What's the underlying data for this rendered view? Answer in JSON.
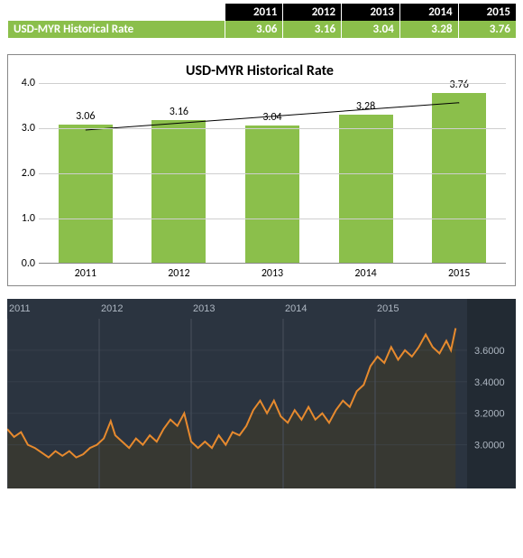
{
  "table": {
    "row_label": "USD-MYR Historical Rate",
    "row_color": "#8bbf4b",
    "years": [
      "2011",
      "2012",
      "2013",
      "2014",
      "2015"
    ],
    "values": [
      "3.06",
      "3.16",
      "3.04",
      "3.28",
      "3.76"
    ]
  },
  "bar_chart": {
    "type": "bar",
    "title": "USD-MYR Historical Rate",
    "title_fontsize": 16,
    "categories": [
      "2011",
      "2012",
      "2013",
      "2014",
      "2015"
    ],
    "values": [
      3.06,
      3.16,
      3.04,
      3.28,
      3.76
    ],
    "bar_color": "#8bbf4b",
    "background": "#ffffff",
    "grid_color": "#cfcfcf",
    "axis_color": "#888888",
    "label_fontsize": 12,
    "ylim": [
      0.0,
      4.0
    ],
    "ytick_step": 1.0,
    "bar_width": 0.58,
    "trendline": {
      "show": true,
      "color": "#000000",
      "width": 1
    }
  },
  "line_chart": {
    "type": "area",
    "background": "#2b3440",
    "axis_label_color": "#aeb7c2",
    "line_color": "#e78a2e",
    "line_width": 2,
    "area_color": "#3a3a30",
    "area_opacity": 0.85,
    "grid_color": "#48515d",
    "right_margin_color": "#222a33",
    "label_fontsize": 11,
    "x_labels": [
      "2011",
      "2012",
      "2013",
      "2014",
      "2015"
    ],
    "y_ticks": [
      "3.6000",
      "3.4000",
      "3.2000",
      "3.0000"
    ],
    "ylim": [
      2.78,
      3.8
    ],
    "x_range": [
      0,
      1000
    ],
    "series": [
      [
        0,
        3.1
      ],
      [
        15,
        3.05
      ],
      [
        30,
        3.08
      ],
      [
        45,
        3.0
      ],
      [
        60,
        2.98
      ],
      [
        75,
        2.95
      ],
      [
        90,
        2.92
      ],
      [
        105,
        2.96
      ],
      [
        120,
        2.93
      ],
      [
        135,
        2.96
      ],
      [
        150,
        2.92
      ],
      [
        165,
        2.94
      ],
      [
        180,
        2.98
      ],
      [
        195,
        3.0
      ],
      [
        210,
        3.04
      ],
      [
        225,
        3.15
      ],
      [
        235,
        3.06
      ],
      [
        250,
        3.02
      ],
      [
        265,
        2.98
      ],
      [
        280,
        3.04
      ],
      [
        295,
        3.0
      ],
      [
        310,
        3.06
      ],
      [
        325,
        3.02
      ],
      [
        340,
        3.1
      ],
      [
        355,
        3.16
      ],
      [
        370,
        3.12
      ],
      [
        385,
        3.2
      ],
      [
        400,
        3.02
      ],
      [
        415,
        2.98
      ],
      [
        430,
        3.02
      ],
      [
        445,
        2.98
      ],
      [
        460,
        3.06
      ],
      [
        475,
        3.0
      ],
      [
        490,
        3.08
      ],
      [
        505,
        3.06
      ],
      [
        520,
        3.12
      ],
      [
        535,
        3.22
      ],
      [
        550,
        3.28
      ],
      [
        565,
        3.2
      ],
      [
        580,
        3.28
      ],
      [
        595,
        3.18
      ],
      [
        610,
        3.14
      ],
      [
        625,
        3.22
      ],
      [
        640,
        3.16
      ],
      [
        655,
        3.24
      ],
      [
        670,
        3.16
      ],
      [
        685,
        3.2
      ],
      [
        700,
        3.14
      ],
      [
        715,
        3.22
      ],
      [
        730,
        3.28
      ],
      [
        745,
        3.24
      ],
      [
        760,
        3.34
      ],
      [
        775,
        3.38
      ],
      [
        790,
        3.5
      ],
      [
        805,
        3.56
      ],
      [
        820,
        3.52
      ],
      [
        835,
        3.62
      ],
      [
        850,
        3.54
      ],
      [
        865,
        3.6
      ],
      [
        880,
        3.56
      ],
      [
        895,
        3.62
      ],
      [
        910,
        3.7
      ],
      [
        925,
        3.62
      ],
      [
        940,
        3.58
      ],
      [
        955,
        3.66
      ],
      [
        965,
        3.6
      ],
      [
        975,
        3.74
      ]
    ]
  }
}
